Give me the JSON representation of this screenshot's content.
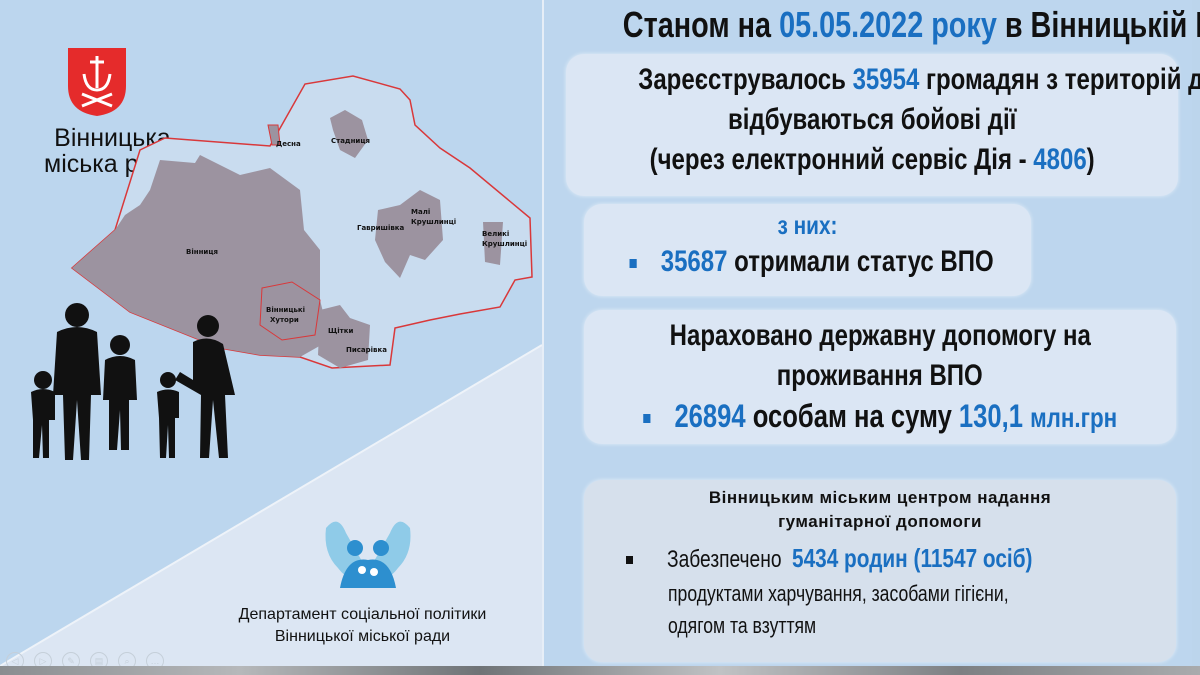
{
  "left": {
    "city_council": [
      "Вінницька",
      "міська рада"
    ],
    "map_labels": [
      "Десна",
      "Стадниця",
      "Вінниця",
      "Гавришівка",
      "Малі",
      "Крушлинці",
      "Великі",
      "Крушлинці",
      "Вінницькі",
      "Хутори",
      "Щітки",
      "Писарівка"
    ],
    "department": [
      "Департамент соціальної політики",
      "Вінницької міської ради"
    ],
    "icons": [
      "coat-of-arms-logo",
      "family-silhouette",
      "hands-family-logo"
    ],
    "slideshow_controls": [
      "previous",
      "next",
      "pen",
      "slides",
      "zoom",
      "more"
    ]
  },
  "title": {
    "prefix": "Станом на",
    "date": "05.05.2022 року",
    "suffix": "в Вінницькій МТГ"
  },
  "registered": {
    "l1a": "Зареєструвалось",
    "count": "35954",
    "l1b": " громадян з територій де",
    "l2": "відбуваються бойові дії",
    "l3a": "(через електронний сервіс Дія - ",
    "diia": "4806",
    "l3b": ")"
  },
  "of_them": {
    "label": "з них:",
    "count": "35687",
    "text": "отримали статус ВПО"
  },
  "aid": {
    "l1": "Нараховано державну допомогу на",
    "l2": "проживання ВПО",
    "count": "26894",
    "mid": "особам на суму",
    "sum": "130,1",
    "unit": "млн.грн"
  },
  "humanitarian": {
    "h1": "Вінницьким міським центром надання",
    "h2": "гуманітарної допомоги",
    "l1a": "Забезпечено",
    "families": "5434 родин (11547 осіб)",
    "l2": "продуктами харчування, засобами гігієни,",
    "l3": "одягом та взуттям"
  },
  "colors": {
    "accent": "#1a6fc1",
    "arms_red": "#e52b2b",
    "map_fill": "#9c93a0",
    "border_red": "#d9383a",
    "bg": "#bdd6ee",
    "box": "#dbe6f4"
  }
}
